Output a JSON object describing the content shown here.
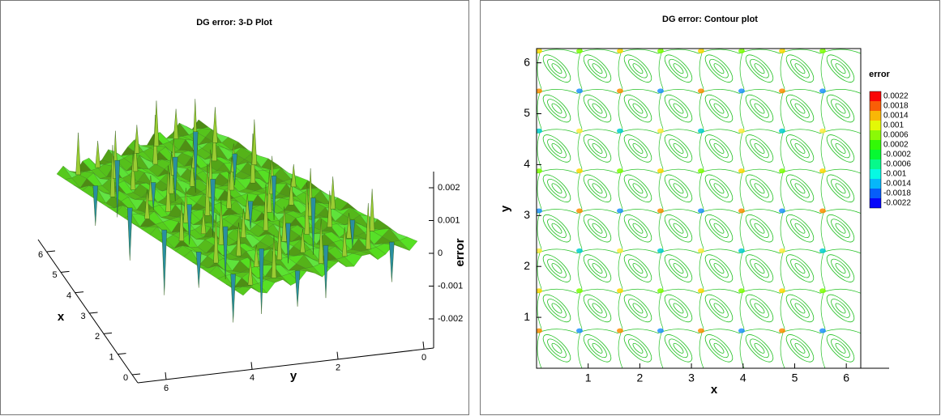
{
  "chart_data": [
    {
      "type": "surface3d",
      "title": "DG error: 3-D Plot",
      "x_label": "x",
      "y_label": "y",
      "z_label": "error",
      "xticks": [
        0,
        1,
        2,
        3,
        4,
        5,
        6
      ],
      "yticks": [
        6,
        4,
        2,
        0
      ],
      "zticks": [
        0.002,
        0.001,
        0,
        -0.001,
        -0.002
      ]
    },
    {
      "type": "contour",
      "title": "DG error: Contour plot",
      "x_label": "x",
      "y_label": "y",
      "xlim": [
        0,
        6.28
      ],
      "ylim": [
        0,
        6.28
      ],
      "xticks": [
        1,
        2,
        3,
        4,
        5,
        6
      ],
      "yticks": [
        1,
        2,
        3,
        4,
        5,
        6
      ],
      "colorbar": {
        "title": "error",
        "ticks": [
          0.0022,
          0.0018,
          0.0014,
          0.001,
          0.0006,
          0.0002,
          -0.0002,
          -0.0006,
          -0.001,
          -0.0014,
          -0.0018,
          -0.0022
        ]
      }
    }
  ]
}
